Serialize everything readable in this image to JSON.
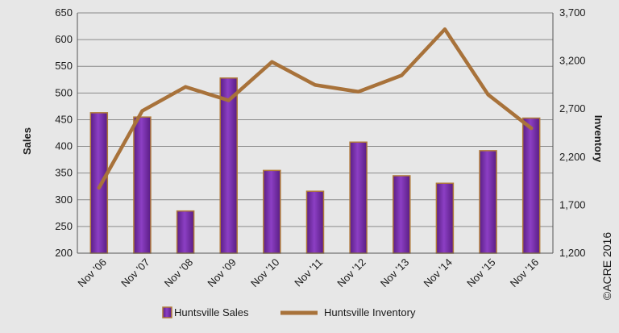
{
  "chart_data": {
    "type": "bar",
    "categories": [
      "Nov '06",
      "Nov '07",
      "Nov '08",
      "Nov '09",
      "Nov '10",
      "Nov '11",
      "Nov '12",
      "Nov '13",
      "Nov '14",
      "Nov '15",
      "Nov '16"
    ],
    "series": [
      {
        "name": "Huntsville Sales",
        "type": "bar",
        "axis": "left",
        "values": [
          463,
          455,
          279,
          528,
          355,
          316,
          408,
          345,
          331,
          392,
          453
        ],
        "color": "#7a2fa8"
      },
      {
        "name": "Huntsville Inventory",
        "type": "line",
        "axis": "right",
        "values": [
          1880,
          2680,
          2930,
          2790,
          3190,
          2950,
          2880,
          3050,
          3530,
          2850,
          2500
        ],
        "color": "#a8723a"
      }
    ],
    "y_left": {
      "label": "Sales",
      "ylim": [
        200,
        650
      ],
      "ticks": [
        200,
        250,
        300,
        350,
        400,
        450,
        500,
        550,
        600,
        650
      ]
    },
    "y_right": {
      "label": "Inventory",
      "ylim": [
        1200,
        3700
      ],
      "ticks": [
        "1,200",
        "1,700",
        "2,200",
        "2,700",
        "3,200",
        "3,700"
      ],
      "tick_values": [
        1200,
        1700,
        2200,
        2700,
        3200,
        3700
      ]
    },
    "grid": true,
    "legend_position": "bottom",
    "copyright": "©ACRE 2016"
  }
}
